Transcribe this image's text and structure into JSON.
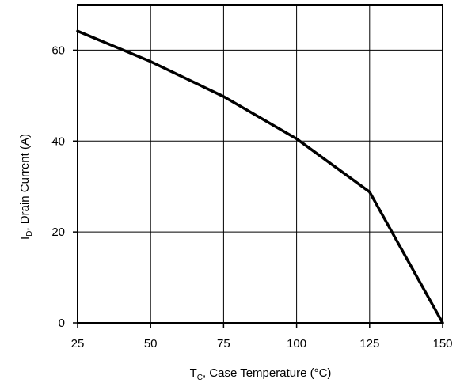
{
  "chart_data": {
    "type": "line",
    "title": "",
    "xlabel": {
      "main": "T",
      "sub": "C",
      "rest": ", Case Temperature (°C)"
    },
    "ylabel": {
      "main": "I",
      "sub": "D",
      "rest": ", Drain Current (A)"
    },
    "xlim": [
      25,
      150
    ],
    "ylim": [
      0,
      70
    ],
    "xticks": [
      25,
      50,
      75,
      100,
      125,
      150
    ],
    "yticks": [
      0,
      20,
      40,
      60
    ],
    "grid": true,
    "series": [
      {
        "x": [
          25,
          50,
          75,
          100,
          125,
          150
        ],
        "y": [
          64.2,
          57.5,
          49.8,
          40.5,
          28.8,
          0
        ],
        "color": "#000000"
      }
    ]
  }
}
